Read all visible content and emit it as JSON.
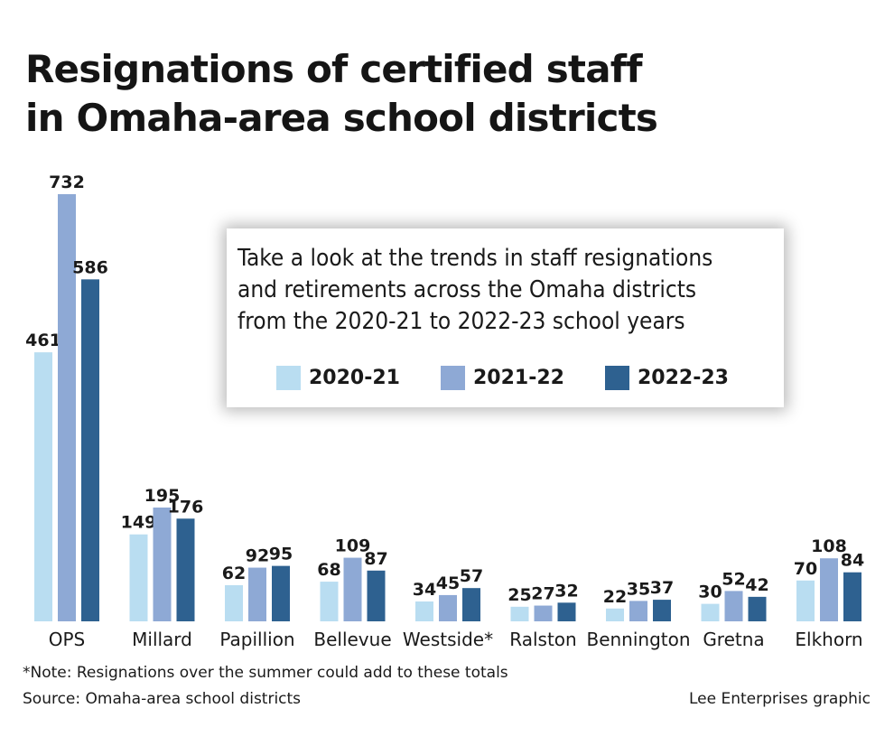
{
  "title_lines": [
    "Resignations of certified staff",
    "in Omaha-area school districts"
  ],
  "description_lines": [
    "Take a look at the trends in staff resignations",
    "and retirements across the Omaha districts",
    "from the 2020-21 to 2022-23 school years"
  ],
  "footnote": "*Note: Resignations over the summer could add to these totals",
  "source": "Source: Omaha-area school districts",
  "credit": "Lee Enterprises graphic",
  "chart_data": {
    "type": "bar",
    "categories": [
      "OPS",
      "Millard",
      "Papillion",
      "Bellevue",
      "Westside*",
      "Ralston",
      "Bennington",
      "Gretna",
      "Elkhorn"
    ],
    "series": [
      {
        "name": "2020-21",
        "color": "#b9ddf1",
        "values": [
          461,
          149,
          62,
          68,
          34,
          25,
          22,
          30,
          70
        ]
      },
      {
        "name": "2021-22",
        "color": "#8ea9d5",
        "values": [
          732,
          195,
          92,
          109,
          45,
          27,
          35,
          52,
          108
        ]
      },
      {
        "name": "2022-23",
        "color": "#2e6190",
        "values": [
          586,
          176,
          95,
          87,
          57,
          32,
          37,
          42,
          84
        ]
      }
    ],
    "ylim": [
      0,
      732
    ],
    "legend": "inside-box-top-center",
    "grid": false
  }
}
